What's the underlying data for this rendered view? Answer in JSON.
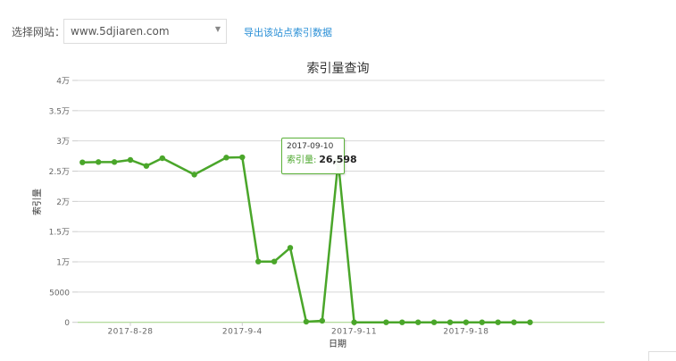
{
  "toolbar": {
    "site_label": "选择网站：",
    "site_value": "www.5djiaren.com",
    "caret": "▼",
    "export_link": "导出该站点索引数据"
  },
  "chart": {
    "title": "索引量查询",
    "ylabel": "索引量",
    "xlabel": "日期",
    "line_color": "#4aa62a",
    "tooltip": {
      "date": "2017-09-10",
      "series_name": "索引量:",
      "value": "26,598"
    }
  },
  "chart_data": {
    "type": "line",
    "title": "索引量查询",
    "xlabel": "日期",
    "ylabel": "索引量",
    "ylim": [
      0,
      40000
    ],
    "yticks": [
      "0",
      "5000",
      "1万",
      "1.5万",
      "2万",
      "2.5万",
      "3万",
      "3.5万",
      "4万"
    ],
    "xticks": [
      "2017-8-28",
      "2017-9-4",
      "2017-9-11",
      "2017-9-18"
    ],
    "grid": true,
    "legend": "none",
    "x": [
      "2017-8-25",
      "2017-8-26",
      "2017-8-27",
      "2017-8-28",
      "2017-8-29",
      "2017-8-30",
      "2017-9-1",
      "2017-9-3",
      "2017-9-4",
      "2017-9-5",
      "2017-9-6",
      "2017-9-7",
      "2017-9-8",
      "2017-9-9",
      "2017-9-10",
      "2017-9-11",
      "2017-9-13",
      "2017-9-14",
      "2017-9-15",
      "2017-9-16",
      "2017-9-17",
      "2017-9-18",
      "2017-9-19",
      "2017-9-20",
      "2017-9-21",
      "2017-9-22"
    ],
    "day_index": [
      0,
      1,
      2,
      3,
      4,
      5,
      7,
      9,
      10,
      11,
      12,
      13,
      14,
      15,
      16,
      17,
      19,
      20,
      21,
      22,
      23,
      24,
      25,
      26,
      27,
      28
    ],
    "series": [
      {
        "name": "索引量",
        "values": [
          26450,
          26500,
          26500,
          26850,
          25860,
          27140,
          24430,
          27240,
          27290,
          10050,
          10050,
          12320,
          100,
          250,
          26598,
          0,
          0,
          0,
          0,
          0,
          0,
          0,
          0,
          0,
          0,
          0
        ]
      }
    ],
    "highlight": {
      "date": "2017-09-10",
      "value": 26598
    }
  }
}
